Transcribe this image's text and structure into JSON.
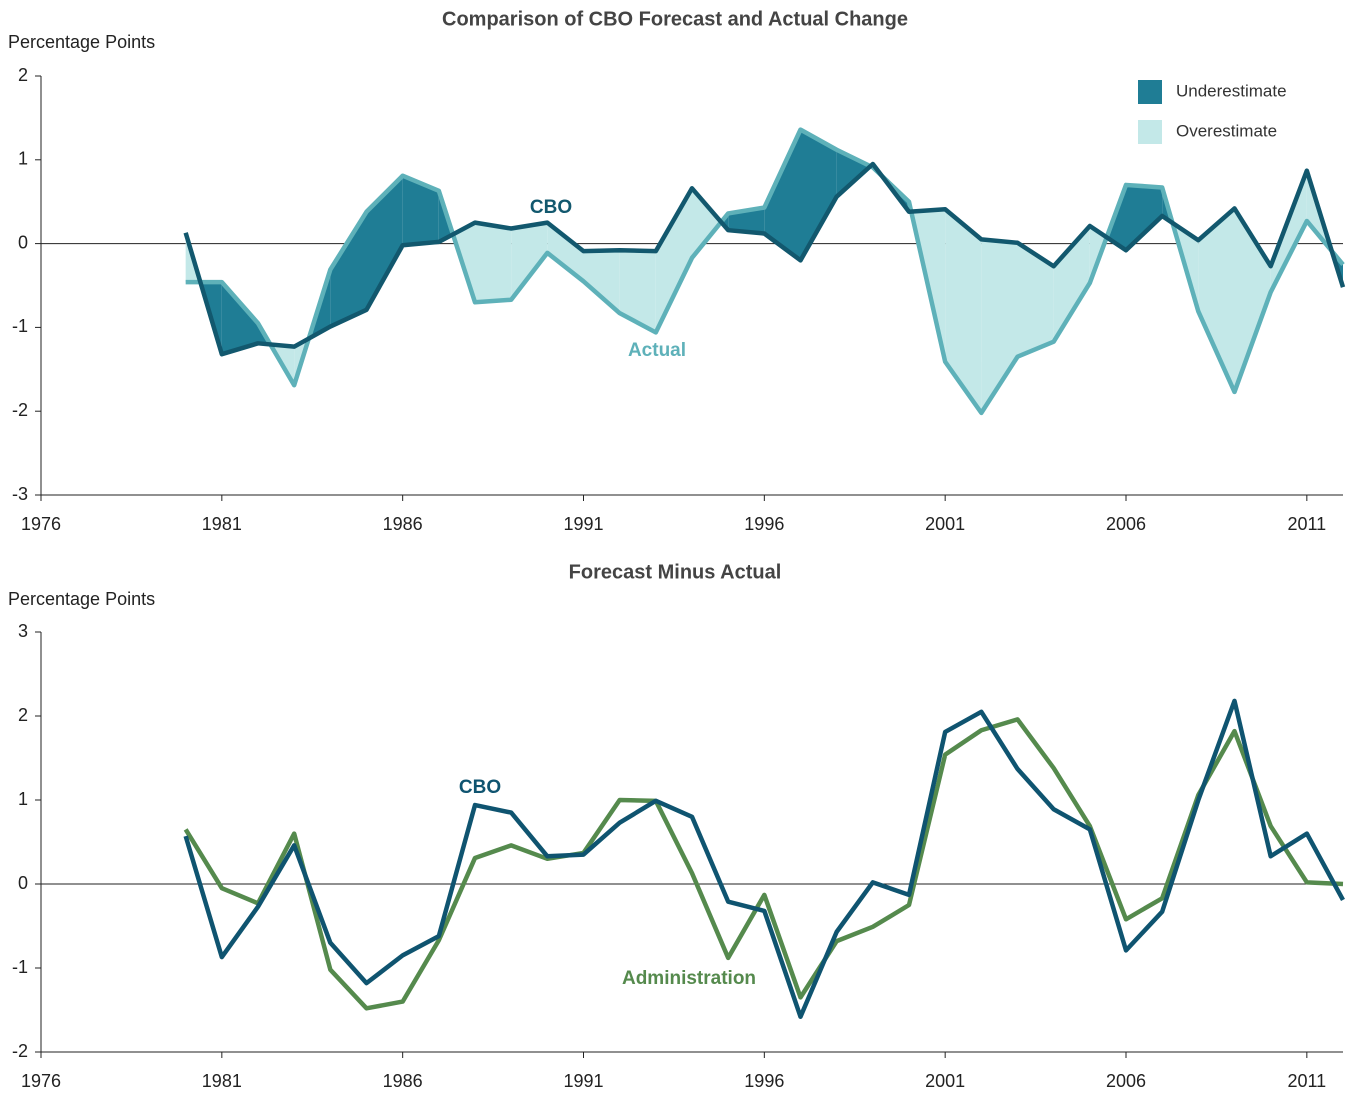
{
  "chart_data": [
    {
      "type": "line",
      "title": "Comparison of CBO Forecast and Actual Change",
      "ylabel": "Percentage Points",
      "x": [
        1980,
        1981,
        1982,
        1983,
        1984,
        1985,
        1986,
        1987,
        1988,
        1989,
        1990,
        1991,
        1992,
        1993,
        1994,
        1995,
        1996,
        1997,
        1998,
        1999,
        2000,
        2001,
        2002,
        2003,
        2004,
        2005,
        2006,
        2007,
        2008,
        2009,
        2010,
        2011,
        2012
      ],
      "series": [
        {
          "name": "CBO",
          "color": "#12586e",
          "values": [
            0.13,
            -1.32,
            -1.19,
            -1.23,
            -0.99,
            -0.79,
            -0.02,
            0.02,
            0.25,
            0.18,
            0.25,
            -0.09,
            -0.08,
            -0.09,
            0.66,
            0.16,
            0.12,
            -0.2,
            0.56,
            0.95,
            0.38,
            0.41,
            0.05,
            0.01,
            -0.27,
            0.21,
            -0.08,
            0.33,
            0.04,
            0.42,
            -0.27,
            0.87,
            -0.52
          ]
        },
        {
          "name": "Actual",
          "color": "#5eb1b9",
          "values": [
            -0.46,
            -0.46,
            -0.95,
            -1.69,
            -0.31,
            0.38,
            0.81,
            0.63,
            -0.7,
            -0.67,
            -0.11,
            -0.45,
            -0.83,
            -1.06,
            -0.17,
            0.36,
            0.43,
            1.36,
            1.12,
            0.91,
            0.5,
            -1.41,
            -2.02,
            -1.35,
            -1.17,
            -0.47,
            0.7,
            0.67,
            -0.81,
            -1.77,
            -0.58,
            0.27,
            -0.25
          ]
        }
      ],
      "fill_between": true,
      "fill_legend": [
        {
          "name": "Underestimate",
          "color": "#1f7d95"
        },
        {
          "name": "Overestimate",
          "color": "#c3e8e8"
        }
      ],
      "xlim": [
        1976,
        2012
      ],
      "ylim": [
        -3,
        2
      ],
      "xticks": [
        1976,
        1981,
        1986,
        1991,
        1996,
        2001,
        2006,
        2011
      ],
      "yticks": [
        -3,
        -2,
        -1,
        0,
        1,
        2
      ]
    },
    {
      "type": "line",
      "title": "Forecast Minus Actual",
      "ylabel": "Percentage Points",
      "x": [
        1980,
        1981,
        1982,
        1983,
        1984,
        1985,
        1986,
        1987,
        1988,
        1989,
        1990,
        1991,
        1992,
        1993,
        1994,
        1995,
        1996,
        1997,
        1998,
        1999,
        2000,
        2001,
        2002,
        2003,
        2004,
        2005,
        2006,
        2007,
        2008,
        2009,
        2010,
        2011,
        2012
      ],
      "series": [
        {
          "name": "Administration",
          "color": "#558a4d",
          "values": [
            0.65,
            -0.05,
            -0.23,
            0.6,
            -1.02,
            -1.48,
            -1.4,
            -0.67,
            0.31,
            0.46,
            0.3,
            0.37,
            1.0,
            0.99,
            0.13,
            -0.88,
            -0.13,
            -1.35,
            -0.68,
            -0.51,
            -0.25,
            1.54,
            1.83,
            1.96,
            1.38,
            0.69,
            -0.42,
            -0.17,
            1.06,
            1.82,
            0.69,
            0.02,
            0
          ]
        },
        {
          "name": "CBO",
          "color": "#0f5470",
          "values": [
            0.57,
            -0.87,
            -0.27,
            0.46,
            -0.7,
            -1.18,
            -0.85,
            -0.62,
            0.94,
            0.85,
            0.33,
            0.35,
            0.73,
            0.99,
            0.8,
            -0.21,
            -0.32,
            -1.58,
            -0.57,
            0.02,
            -0.13,
            1.81,
            2.05,
            1.37,
            0.89,
            0.65,
            -0.79,
            -0.33,
            1.0,
            2.18,
            0.33,
            0.6,
            -0.19
          ]
        }
      ],
      "xlim": [
        1976,
        2012
      ],
      "ylim": [
        -2,
        3
      ],
      "xticks": [
        1976,
        1981,
        1986,
        1991,
        1996,
        2001,
        2006,
        2011
      ],
      "yticks": [
        -2,
        -1,
        0,
        1,
        2,
        3
      ]
    }
  ]
}
